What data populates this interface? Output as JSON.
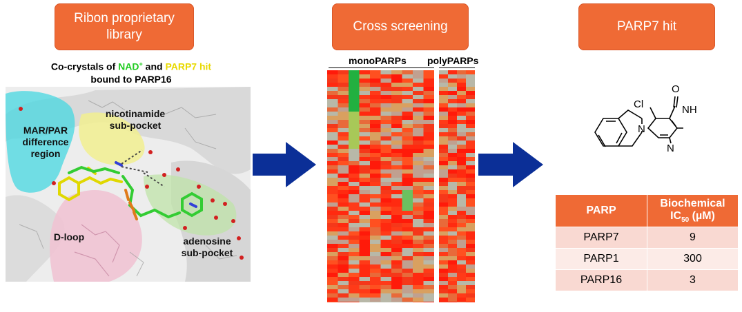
{
  "panel1": {
    "box_title": "Ribon proprietary library",
    "caption_pre": "Co-crystals of ",
    "caption_nad": "NAD",
    "caption_nad_sup": "+",
    "caption_and": " and ",
    "caption_hit": "PARP7 hit",
    "caption_line2": "bound to PARP16",
    "labels": {
      "nicotinamide": "nicotinamide sub-pocket",
      "marpar": "MAR/PAR difference region",
      "dloop": "D-loop",
      "adenosine": "adenosine sub-pocket"
    },
    "colors": {
      "nad": "#22cc22",
      "hit": "#e8d900"
    }
  },
  "panel2": {
    "box_title": "Cross screening",
    "mono_label": "monoPARPs",
    "poly_label": "polyPARPs"
  },
  "panel3": {
    "box_title": "PARP7 hit",
    "molecule": {
      "atom_cl": "Cl",
      "atom_o": "O",
      "atom_nh": "NH",
      "atom_n1": "N",
      "atom_n2": "N"
    },
    "table": {
      "col1": "PARP",
      "col2_a": "Biochemical",
      "col2_b": "IC",
      "col2_sub": "50",
      "col2_c": " (µM)",
      "rows": [
        {
          "name": "PARP7",
          "value": "9"
        },
        {
          "name": "PARP1",
          "value": "300"
        },
        {
          "name": "PARP16",
          "value": "3"
        }
      ]
    }
  },
  "colors": {
    "box": "#ef6a35",
    "arrow": "#0b2f97"
  }
}
